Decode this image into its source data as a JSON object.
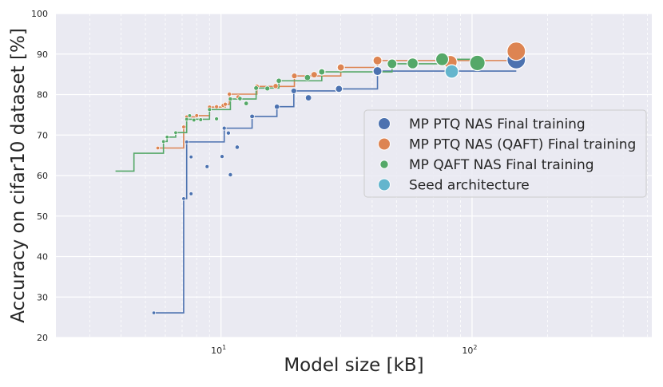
{
  "chart_data": {
    "type": "scatter",
    "title": "",
    "xlabel": "Model size [kB]",
    "ylabel": "Accuracy on cifar10 dataset [%]",
    "xscale": "log",
    "xlim": [
      2.2,
      520
    ],
    "ylim": [
      20,
      100
    ],
    "xticks": [
      {
        "value": 10,
        "base": "10",
        "exp": "1"
      },
      {
        "value": 100,
        "base": "10",
        "exp": "2"
      }
    ],
    "yticks": [
      20,
      30,
      40,
      50,
      60,
      70,
      80,
      90,
      100
    ],
    "grid": true,
    "legend_position": "center-right",
    "series": [
      {
        "name": "MP PTQ NAS Final training",
        "color": "#4c72b0",
        "points": [
          {
            "x": 5.4,
            "y": 26.1
          },
          {
            "x": 7.1,
            "y": 54.3
          },
          {
            "x": 7.3,
            "y": 68.3
          },
          {
            "x": 7.6,
            "y": 64.6
          },
          {
            "x": 7.6,
            "y": 55.5
          },
          {
            "x": 8.8,
            "y": 62.2
          },
          {
            "x": 10.1,
            "y": 64.7
          },
          {
            "x": 10.3,
            "y": 71.7
          },
          {
            "x": 10.7,
            "y": 70.5
          },
          {
            "x": 10.9,
            "y": 60.2
          },
          {
            "x": 11.6,
            "y": 67.0
          },
          {
            "x": 13.3,
            "y": 74.6
          },
          {
            "x": 16.7,
            "y": 77.0
          },
          {
            "x": 19.5,
            "y": 80.9
          },
          {
            "x": 22.3,
            "y": 79.2
          },
          {
            "x": 29.5,
            "y": 81.4
          },
          {
            "x": 42.0,
            "y": 85.8
          },
          {
            "x": 150.0,
            "y": 88.6
          }
        ],
        "frontier": [
          {
            "x": 5.4,
            "y": 26.1
          },
          {
            "x": 7.1,
            "y": 54.3
          },
          {
            "x": 7.3,
            "y": 68.3
          },
          {
            "x": 10.3,
            "y": 71.7
          },
          {
            "x": 13.3,
            "y": 74.6
          },
          {
            "x": 16.7,
            "y": 77.0
          },
          {
            "x": 19.5,
            "y": 80.9
          },
          {
            "x": 29.5,
            "y": 81.4
          },
          {
            "x": 42.0,
            "y": 85.8
          },
          {
            "x": 150.0,
            "y": 85.8
          }
        ]
      },
      {
        "name": "MP PTQ NAS (QAFT) Final training",
        "color": "#dd8452",
        "points": [
          {
            "x": 5.6,
            "y": 66.8
          },
          {
            "x": 7.1,
            "y": 72.0
          },
          {
            "x": 7.3,
            "y": 74.5
          },
          {
            "x": 8.0,
            "y": 74.8
          },
          {
            "x": 9.0,
            "y": 76.9
          },
          {
            "x": 9.6,
            "y": 77.0
          },
          {
            "x": 10.2,
            "y": 77.3
          },
          {
            "x": 10.4,
            "y": 77.6
          },
          {
            "x": 10.8,
            "y": 80.1
          },
          {
            "x": 11.7,
            "y": 79.4
          },
          {
            "x": 13.9,
            "y": 82.0
          },
          {
            "x": 16.5,
            "y": 82.1
          },
          {
            "x": 19.6,
            "y": 84.6
          },
          {
            "x": 23.5,
            "y": 84.9
          },
          {
            "x": 30.0,
            "y": 86.7
          },
          {
            "x": 42.0,
            "y": 88.4
          },
          {
            "x": 82.0,
            "y": 88.0
          },
          {
            "x": 150.0,
            "y": 90.7
          }
        ],
        "frontier": [
          {
            "x": 5.6,
            "y": 66.8
          },
          {
            "x": 7.1,
            "y": 72.0
          },
          {
            "x": 7.3,
            "y": 74.5
          },
          {
            "x": 8.0,
            "y": 74.8
          },
          {
            "x": 9.0,
            "y": 76.9
          },
          {
            "x": 10.4,
            "y": 77.6
          },
          {
            "x": 10.8,
            "y": 80.1
          },
          {
            "x": 13.9,
            "y": 82.0
          },
          {
            "x": 19.6,
            "y": 84.6
          },
          {
            "x": 30.0,
            "y": 86.7
          },
          {
            "x": 42.0,
            "y": 88.4
          },
          {
            "x": 150.0,
            "y": 88.4
          }
        ]
      },
      {
        "name": "MP QAFT NAS Final training",
        "color": "#55a868",
        "points": [
          {
            "x": 4.5,
            "y": 65.5
          },
          {
            "x": 4.9,
            "y": 65.7
          },
          {
            "x": 5.9,
            "y": 68.4
          },
          {
            "x": 6.1,
            "y": 69.5
          },
          {
            "x": 6.6,
            "y": 70.6
          },
          {
            "x": 7.3,
            "y": 73.9
          },
          {
            "x": 7.5,
            "y": 74.8
          },
          {
            "x": 7.8,
            "y": 73.7
          },
          {
            "x": 8.3,
            "y": 73.8
          },
          {
            "x": 9.0,
            "y": 76.3
          },
          {
            "x": 9.6,
            "y": 74.0
          },
          {
            "x": 10.9,
            "y": 78.9
          },
          {
            "x": 11.9,
            "y": 79.0
          },
          {
            "x": 12.6,
            "y": 77.8
          },
          {
            "x": 13.8,
            "y": 81.6
          },
          {
            "x": 15.3,
            "y": 81.5
          },
          {
            "x": 17.0,
            "y": 83.4
          },
          {
            "x": 22.1,
            "y": 84.2
          },
          {
            "x": 25.2,
            "y": 85.6
          },
          {
            "x": 48.0,
            "y": 87.6
          },
          {
            "x": 58.0,
            "y": 87.7
          },
          {
            "x": 76.0,
            "y": 88.7
          },
          {
            "x": 105.0,
            "y": 87.8
          }
        ],
        "frontier": [
          {
            "x": 3.8,
            "y": 61.1
          },
          {
            "x": 4.5,
            "y": 65.5
          },
          {
            "x": 5.9,
            "y": 68.4
          },
          {
            "x": 6.1,
            "y": 69.5
          },
          {
            "x": 6.6,
            "y": 70.6
          },
          {
            "x": 7.3,
            "y": 73.9
          },
          {
            "x": 9.0,
            "y": 76.3
          },
          {
            "x": 10.9,
            "y": 78.9
          },
          {
            "x": 13.8,
            "y": 81.6
          },
          {
            "x": 17.0,
            "y": 83.4
          },
          {
            "x": 25.2,
            "y": 85.6
          },
          {
            "x": 48.0,
            "y": 87.6
          },
          {
            "x": 76.0,
            "y": 88.7
          },
          {
            "x": 105.0,
            "y": 88.7
          }
        ]
      },
      {
        "name": "Seed architecture",
        "color": "#64b5cd",
        "points": [
          {
            "x": 83.0,
            "y": 85.7
          }
        ]
      }
    ]
  }
}
